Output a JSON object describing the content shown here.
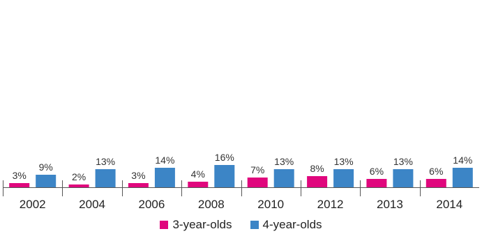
{
  "colors": {
    "three_year_olds": "#e0077d",
    "four_year_olds": "#3c85c6",
    "axis": "#555555",
    "label_text": "#333333"
  },
  "chart_data": {
    "type": "bar",
    "categories": [
      "2002",
      "2004",
      "2006",
      "2008",
      "2010",
      "2012",
      "2013",
      "2014"
    ],
    "series": [
      {
        "name": "3-year-olds",
        "values": [
          3,
          2,
          3,
          4,
          7,
          8,
          6,
          6
        ],
        "labels": [
          "3%",
          "2%",
          "3%",
          "4%",
          "7%",
          "8%",
          "6%",
          "6%"
        ],
        "color": "#e0077d"
      },
      {
        "name": "4-year-olds",
        "values": [
          9,
          13,
          14,
          16,
          13,
          13,
          13,
          14
        ],
        "labels": [
          "9%",
          "13%",
          "14%",
          "16%",
          "13%",
          "13%",
          "13%",
          "14%"
        ],
        "color": "#3c85c6"
      }
    ],
    "title": "",
    "xlabel": "",
    "ylabel": "",
    "ylim": [
      0,
      100
    ],
    "grid": false,
    "legend_position": "bottom"
  },
  "legend": {
    "items": [
      {
        "label": "3-year-olds",
        "color": "#e0077d"
      },
      {
        "label": "4-year-olds",
        "color": "#3c85c6"
      }
    ]
  }
}
